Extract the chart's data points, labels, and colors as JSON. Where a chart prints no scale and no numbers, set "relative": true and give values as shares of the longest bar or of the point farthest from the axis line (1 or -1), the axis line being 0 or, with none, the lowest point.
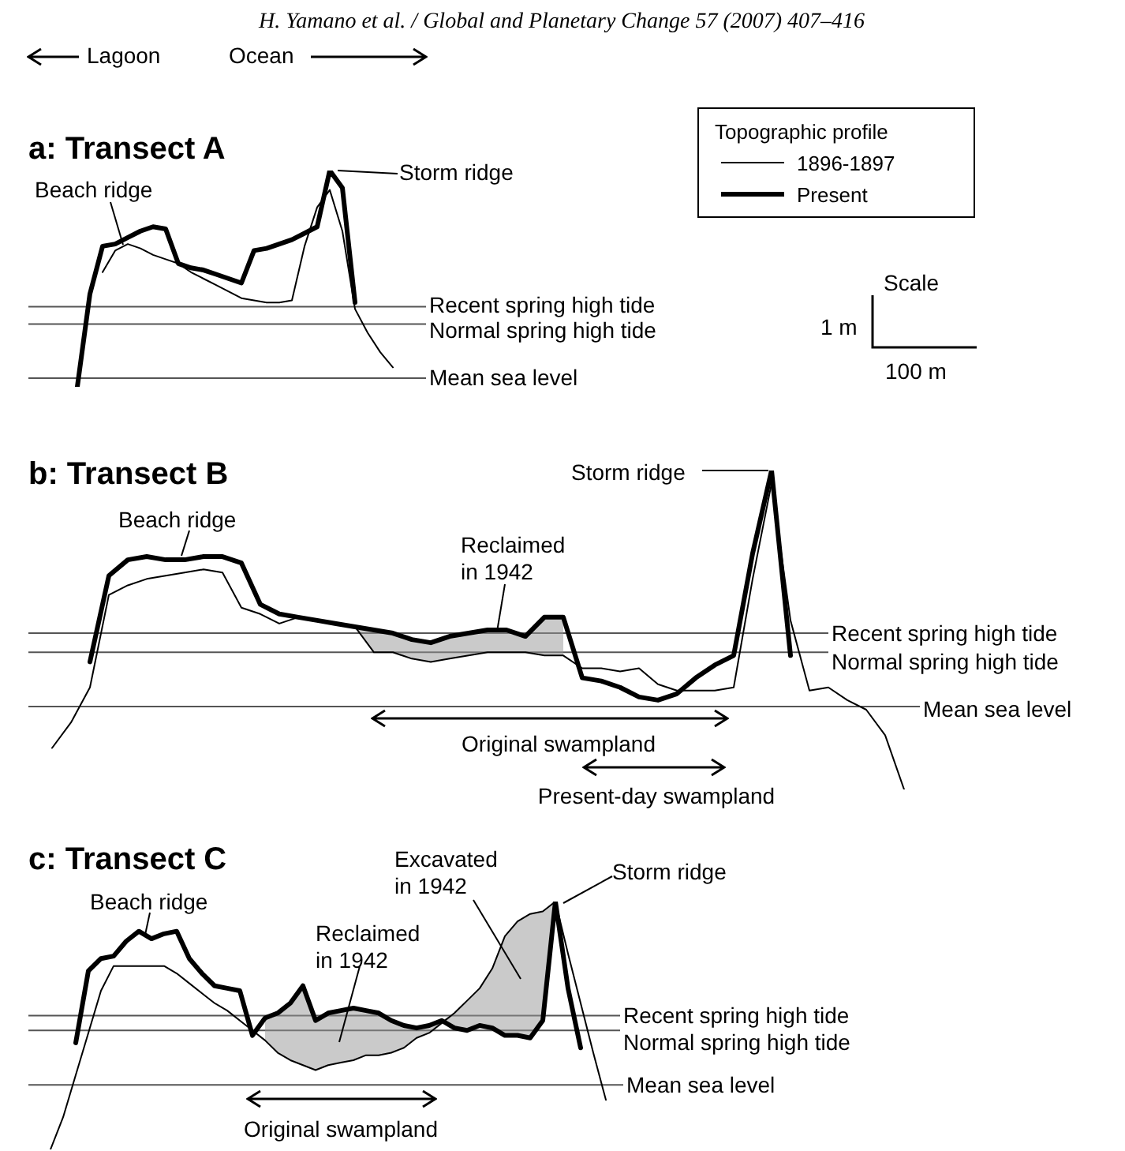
{
  "chart_data": [
    {
      "type": "line",
      "relative": true,
      "title": "a: Transect A",
      "legend_title": "Topographic profile",
      "legend": "top right",
      "categories": [
        null,
        null,
        null,
        null,
        null,
        null,
        null,
        null,
        null,
        null,
        null,
        null,
        null,
        null,
        null,
        null,
        null,
        null,
        null,
        null,
        null,
        null,
        null,
        null,
        null,
        null
      ],
      "series": [
        {
          "name": "1896-1897",
          "color": "#000000",
          "values": [
            null,
            null,
            0.53,
            0.63,
            0.66,
            0.64,
            0.61,
            0.59,
            0.57,
            0.53,
            0.5,
            0.47,
            0.44,
            0.41,
            0.4,
            0.39,
            0.39,
            0.4,
            0.65,
            0.83,
            0.91,
            0.72,
            0.36,
            0.25,
            0.16,
            0.09
          ]
        },
        {
          "name": "Present",
          "color": "#000000",
          "values": [
            0,
            0.43,
            0.65,
            0.66,
            0.69,
            0.72,
            0.74,
            0.73,
            0.57,
            0.55,
            0.54,
            0.52,
            0.5,
            0.48,
            0.63,
            0.64,
            0.66,
            0.68,
            0.71,
            0.74,
            1,
            0.92,
            0.39,
            null,
            null,
            null
          ]
        }
      ],
      "ref_lines": [
        {
          "axis": "y",
          "value": 0.37,
          "label": "Recent spring high tide",
          "color": "#555555"
        },
        {
          "axis": "y",
          "value": 0.29,
          "label": "Normal spring high tide",
          "color": "#555555"
        },
        {
          "axis": "y",
          "value": 0.04,
          "label": "Mean sea level",
          "color": "#555555"
        }
      ],
      "annotations": [
        "H. Yamano et al. / Global and Planetary Change 57 (2007) 407–416",
        "Lagoon",
        "Ocean",
        "Beach ridge",
        "Storm ridge",
        "Scale",
        "1 m",
        "100 m"
      ]
    },
    {
      "type": "line",
      "relative": true,
      "title": "b: Transect B",
      "categories": [
        null,
        null,
        null,
        null,
        null,
        null,
        null,
        null,
        null,
        null,
        null,
        null,
        null,
        null,
        null,
        null,
        null,
        null,
        null,
        null,
        null,
        null,
        null,
        null,
        null,
        null,
        null,
        null,
        null,
        null,
        null,
        null,
        null,
        null,
        null,
        null,
        null,
        null,
        null,
        null,
        null,
        null,
        null,
        null,
        null,
        null,
        null
      ],
      "series": [
        {
          "color": "#000000",
          "values": [
            null,
            0.13,
            0.21,
            0.32,
            0.61,
            0.64,
            0.66,
            0.67,
            0.68,
            0.69,
            0.68,
            0.57,
            0.55,
            0.52,
            0.54,
            0.53,
            0.52,
            0.51,
            0.43,
            0.43,
            0.41,
            0.4,
            0.41,
            0.42,
            0.43,
            0.43,
            0.43,
            0.42,
            0.42,
            0.38,
            0.38,
            0.37,
            0.38,
            0.33,
            0.31,
            0.31,
            0.31,
            0.32,
            0.66,
            0.96,
            0.53,
            0.31,
            0.32,
            0.28,
            0.25,
            0.17,
            0
          ],
          "lower": [
            null,
            null,
            null,
            null,
            null,
            null,
            null,
            null,
            null,
            null,
            null,
            null,
            null,
            null,
            null,
            null,
            null,
            0.51,
            0.43,
            0.43,
            0.41,
            0.4,
            0.41,
            0.42,
            0.43,
            0.43,
            0.43,
            0.42,
            0.42,
            null,
            null,
            null,
            null,
            null,
            null,
            null,
            null,
            null,
            null,
            null,
            null,
            null,
            null,
            null,
            null,
            null,
            null
          ],
          "upper": [
            null,
            null,
            null,
            null,
            null,
            null,
            null,
            null,
            null,
            null,
            null,
            null,
            null,
            null,
            null,
            null,
            null,
            0.51,
            0.5,
            0.49,
            0.47,
            0.46,
            0.48,
            0.49,
            0.5,
            0.5,
            0.48,
            0.54,
            0.54,
            null,
            null,
            null,
            null,
            null,
            null,
            null,
            null,
            null,
            null,
            null,
            null,
            null,
            null,
            null,
            null,
            null,
            null
          ]
        },
        {
          "color": "#000000",
          "values": [
            null,
            null,
            null,
            0.4,
            0.67,
            0.72,
            0.73,
            0.72,
            0.72,
            0.73,
            0.73,
            0.71,
            0.58,
            0.55,
            0.54,
            0.53,
            0.52,
            0.51,
            0.5,
            0.49,
            0.47,
            0.46,
            0.48,
            0.49,
            0.5,
            0.5,
            0.48,
            0.54,
            0.54,
            0.35,
            0.34,
            0.32,
            0.29,
            0.28,
            0.3,
            0.35,
            0.39,
            0.42,
            0.74,
            1,
            0.42,
            null,
            null,
            null,
            null,
            null,
            null
          ]
        }
      ],
      "ref_lines": [
        {
          "axis": "y",
          "value": 0.49,
          "label": "Recent spring high tide",
          "color": "#555555"
        },
        {
          "axis": "y",
          "value": 0.43,
          "label": "Normal spring high tide",
          "color": "#555555"
        },
        {
          "axis": "y",
          "value": 0.26,
          "label": "Mean sea level",
          "color": "#555555"
        }
      ],
      "annotations": [
        "Beach ridge",
        "Storm ridge",
        "Reclaimed in 1942",
        "Original swampland",
        "Present-day swampland"
      ]
    },
    {
      "type": "line",
      "relative": true,
      "title": "c: Transect C",
      "categories": [
        null,
        null,
        null,
        null,
        null,
        null,
        null,
        null,
        null,
        null,
        null,
        null,
        null,
        null,
        null,
        null,
        null,
        null,
        null,
        null,
        null,
        null,
        null,
        null,
        null,
        null,
        null,
        null,
        null,
        null,
        null,
        null,
        null,
        null,
        null,
        null,
        null,
        null,
        null,
        null,
        null,
        null,
        null,
        null,
        null
      ],
      "series": [
        {
          "color": "#000000",
          "values": [
            0,
            0.13,
            0.3,
            0.47,
            0.64,
            0.74,
            0.74,
            0.74,
            0.74,
            0.74,
            0.71,
            0.67,
            0.63,
            0.59,
            0.56,
            0.52,
            0.48,
            0.44,
            0.39,
            0.36,
            0.34,
            0.32,
            0.34,
            0.35,
            0.36,
            0.38,
            0.38,
            0.39,
            0.41,
            0.45,
            0.47,
            0.51,
            0.55,
            0.6,
            0.65,
            0.73,
            0.86,
            0.92,
            0.95,
            0.96,
            1,
            0.79,
            0.59,
            0.39,
            0.2
          ],
          "lower": [
            null,
            null,
            null,
            null,
            null,
            null,
            null,
            null,
            null,
            null,
            null,
            null,
            null,
            null,
            null,
            null,
            null,
            0.44,
            0.39,
            0.36,
            0.34,
            0.32,
            0.34,
            0.35,
            0.36,
            0.38,
            0.38,
            0.39,
            0.41,
            0.45,
            0.47,
            0.51,
            0.49,
            0.48,
            0.5,
            0.49,
            0.46,
            0.46,
            0.45,
            0.52,
            1,
            null,
            null,
            null,
            null
          ],
          "upper": [
            null,
            null,
            null,
            null,
            null,
            null,
            null,
            null,
            null,
            null,
            null,
            null,
            null,
            null,
            null,
            null,
            null,
            0.53,
            0.55,
            0.59,
            0.66,
            0.52,
            0.55,
            0.56,
            0.57,
            0.56,
            0.55,
            0.52,
            0.5,
            0.49,
            0.5,
            0.52,
            0.55,
            0.6,
            0.65,
            0.73,
            0.86,
            0.92,
            0.95,
            0.96,
            1,
            null,
            null,
            null,
            null
          ]
        },
        {
          "color": "#000000",
          "values": [
            null,
            null,
            0.43,
            0.72,
            0.77,
            0.78,
            0.84,
            0.88,
            0.85,
            0.87,
            0.88,
            0.77,
            0.71,
            0.66,
            0.65,
            0.64,
            0.46,
            0.53,
            0.55,
            0.59,
            0.66,
            0.52,
            0.55,
            0.56,
            0.57,
            0.56,
            0.55,
            0.52,
            0.5,
            0.49,
            0.5,
            0.52,
            0.49,
            0.48,
            0.5,
            0.49,
            0.46,
            0.46,
            0.45,
            0.52,
            1,
            0.65,
            0.41,
            null,
            null
          ]
        }
      ],
      "ref_lines": [
        {
          "axis": "y",
          "value": 0.54,
          "label": "Recent spring high tide",
          "color": "#555555"
        },
        {
          "axis": "y",
          "value": 0.48,
          "label": "Normal spring high tide",
          "color": "#555555"
        },
        {
          "axis": "y",
          "value": 0.26,
          "label": "Mean sea level",
          "color": "#555555"
        }
      ],
      "annotations": [
        "Beach ridge",
        "Reclaimed in 1942",
        "Excavated in 1942",
        "Storm ridge",
        "Original swampland"
      ]
    }
  ]
}
